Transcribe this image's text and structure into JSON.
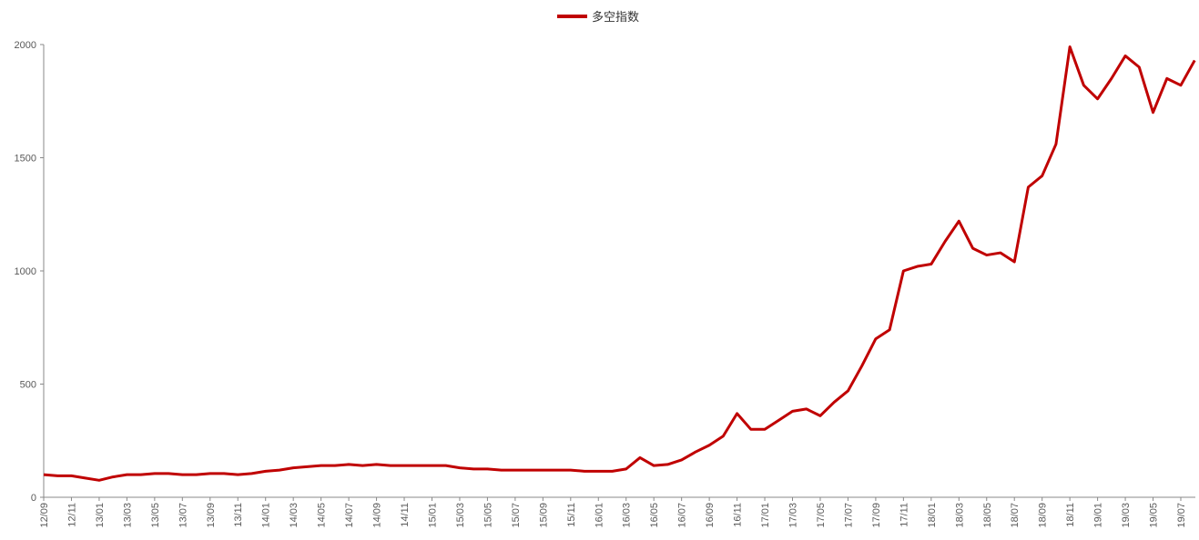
{
  "chart_data": {
    "type": "line",
    "categories": [
      "12/09",
      null,
      "12/11",
      null,
      "13/01",
      null,
      "13/03",
      null,
      "13/05",
      null,
      "13/07",
      null,
      "13/09",
      null,
      "13/11",
      null,
      "14/01",
      null,
      "14/03",
      null,
      "14/05",
      null,
      "14/07",
      null,
      "14/09",
      null,
      "14/11",
      null,
      "15/01",
      null,
      "15/03",
      null,
      "15/05",
      null,
      "15/07",
      null,
      "15/09",
      null,
      "15/11",
      null,
      "16/01",
      null,
      "16/03",
      null,
      "16/05",
      null,
      "16/07",
      null,
      "16/09",
      null,
      "16/11",
      null,
      "17/01",
      null,
      "17/03",
      null,
      "17/05",
      null,
      "17/07",
      null,
      "17/09",
      null,
      "17/11",
      null,
      "18/01",
      null,
      "18/03",
      null,
      "18/05",
      null,
      "18/07",
      null,
      "18/09",
      null,
      "18/11",
      null,
      "19/01",
      null,
      "19/03",
      null,
      "19/05",
      null,
      "19/07",
      null
    ],
    "series": [
      {
        "name": "多空指数",
        "color": "#c00000",
        "values": [
          100,
          95,
          95,
          85,
          75,
          90,
          100,
          100,
          105,
          105,
          100,
          100,
          105,
          105,
          100,
          105,
          115,
          120,
          130,
          135,
          140,
          140,
          145,
          140,
          145,
          140,
          140,
          140,
          140,
          140,
          130,
          125,
          125,
          120,
          120,
          120,
          120,
          120,
          120,
          115,
          115,
          115,
          125,
          175,
          140,
          145,
          165,
          200,
          230,
          270,
          370,
          300,
          300,
          340,
          380,
          390,
          360,
          420,
          470,
          580,
          700,
          740,
          1000,
          1020,
          1030,
          1130,
          1220,
          1100,
          1070,
          1080,
          1040,
          1370,
          1420,
          1560,
          1990,
          1820,
          1760,
          1850,
          1950,
          1900,
          1700,
          1850,
          1820,
          1930
        ]
      }
    ],
    "ylim": [
      0,
      2000
    ],
    "yticks": [
      0,
      500,
      1000,
      1500,
      2000
    ],
    "legend": "top"
  }
}
